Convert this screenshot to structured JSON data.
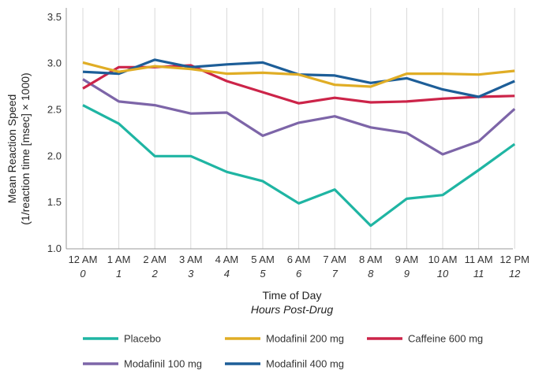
{
  "chart_data": {
    "type": "line",
    "title": "",
    "xlabel": "Time of Day",
    "xlabel_sub": "Hours Post-Drug",
    "ylabel": "Mean Reaction Speed",
    "ylabel_sub": "(1/reaction time [msec] × 1000)",
    "categories": [
      "12 AM",
      "1 AM",
      "2 AM",
      "3 AM",
      "4 AM",
      "5 AM",
      "6 AM",
      "7 AM",
      "8 AM",
      "9 AM",
      "10 AM",
      "11 AM",
      "12 PM"
    ],
    "categories_sub": [
      "0",
      "1",
      "2",
      "3",
      "4",
      "5",
      "6",
      "7",
      "8",
      "9",
      "10",
      "11",
      "12"
    ],
    "ylim": [
      1.0,
      3.6
    ],
    "yticks": [
      "1.0",
      "1.5",
      "2.0",
      "2.5",
      "3.0",
      "3.5"
    ],
    "grid": "vertical",
    "legend_position": "bottom",
    "series": [
      {
        "name": "Placebo",
        "color": "#1fb5a3",
        "values": [
          2.55,
          2.35,
          2.0,
          2.0,
          1.83,
          1.73,
          1.49,
          1.64,
          1.25,
          1.54,
          1.58,
          1.85,
          2.13
        ]
      },
      {
        "name": "Modafinil 200 mg",
        "color": "#e0ad25",
        "values": [
          3.01,
          2.91,
          2.97,
          2.94,
          2.89,
          2.9,
          2.88,
          2.77,
          2.75,
          2.89,
          2.89,
          2.88,
          2.92
        ]
      },
      {
        "name": "Caffeine 600 mg",
        "color": "#cc2449",
        "values": [
          2.73,
          2.96,
          2.96,
          2.98,
          2.81,
          2.69,
          2.57,
          2.63,
          2.58,
          2.59,
          2.62,
          2.64,
          2.65
        ]
      },
      {
        "name": "Modafinil 100 mg",
        "color": "#7d65a8",
        "values": [
          2.83,
          2.59,
          2.55,
          2.46,
          2.47,
          2.22,
          2.36,
          2.43,
          2.31,
          2.25,
          2.02,
          2.16,
          2.51
        ]
      },
      {
        "name": "Modafinil 400 mg",
        "color": "#1d5e98",
        "values": [
          2.91,
          2.89,
          3.04,
          2.96,
          2.99,
          3.01,
          2.88,
          2.87,
          2.79,
          2.84,
          2.72,
          2.64,
          2.81
        ]
      }
    ]
  }
}
